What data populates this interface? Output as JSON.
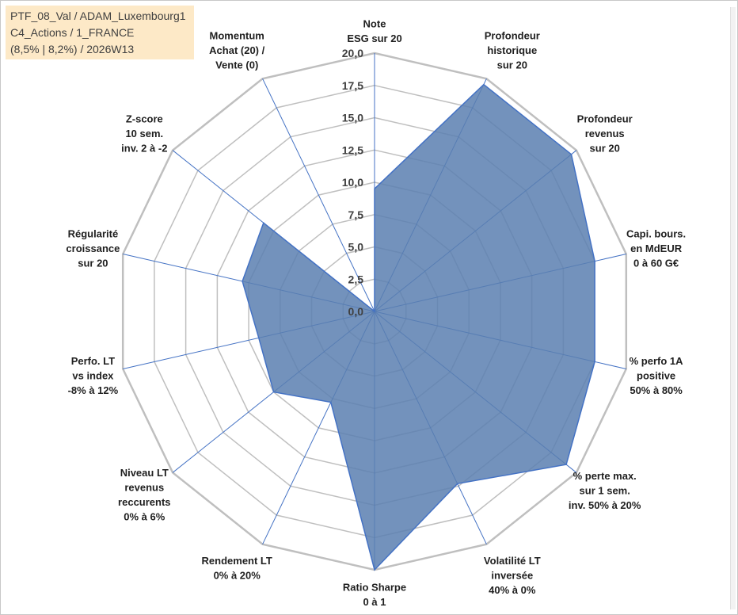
{
  "info": {
    "line1": "PTF_08_Val / ADAM_Luxembourg1",
    "line2": "C4_Actions / 1_FRANCE",
    "line3": "(8,5% | 8,2%) / 2026W13"
  },
  "colors": {
    "fill": "#5b7fb0",
    "stroke": "#4472c4",
    "grid": "#bfbfbf",
    "spoke": "#4472c4",
    "info_bg": "#fde9c7"
  },
  "chart_data": {
    "type": "radar",
    "rmin": 0,
    "rmax": 20,
    "ticks": [
      "0,0",
      "2,5",
      "5,0",
      "7,5",
      "10,0",
      "12,5",
      "15,0",
      "17,5",
      "20,0"
    ],
    "grid": true,
    "axes": [
      {
        "lines": [
          "Note",
          "ESG sur 20"
        ],
        "value": 9.5
      },
      {
        "lines": [
          "Profondeur",
          "historique",
          "sur 20"
        ],
        "value": 19.5
      },
      {
        "lines": [
          "Profondeur",
          "revenus",
          "sur 20"
        ],
        "value": 19.5
      },
      {
        "lines": [
          "Capi. bours.",
          "en MdEUR",
          "0 à 60 G€"
        ],
        "value": 17.5
      },
      {
        "lines": [
          "% perfo 1A",
          "positive",
          "50% à 80%"
        ],
        "value": 17.5
      },
      {
        "lines": [
          "% perte max.",
          "sur 1 sem.",
          "inv. 50% à 20%"
        ],
        "value": 19.0
      },
      {
        "lines": [
          "Volatilité LT",
          "inversée",
          "40% à 0%"
        ],
        "value": 14.8
      },
      {
        "lines": [
          "Ratio Sharpe",
          "0 à 1"
        ],
        "value": 20.0
      },
      {
        "lines": [
          "Rendement LT",
          "0% à 20%"
        ],
        "value": 7.8
      },
      {
        "lines": [
          "Niveau LT",
          "revenus",
          "reccurents",
          "0% à 6%"
        ],
        "value": 10.0
      },
      {
        "lines": [
          "Perfo. LT",
          "vs index",
          "-8% à 12%"
        ],
        "value": 9.2
      },
      {
        "lines": [
          "Régularité",
          "croissance",
          "sur 20"
        ],
        "value": 10.5
      },
      {
        "lines": [
          "Z-score",
          "10 sem.",
          "inv. 2 à -2"
        ],
        "value": 11.0
      },
      {
        "lines": [
          "Momentum",
          "Achat (20) /",
          "Vente (0)"
        ],
        "value": 0.0
      }
    ]
  }
}
